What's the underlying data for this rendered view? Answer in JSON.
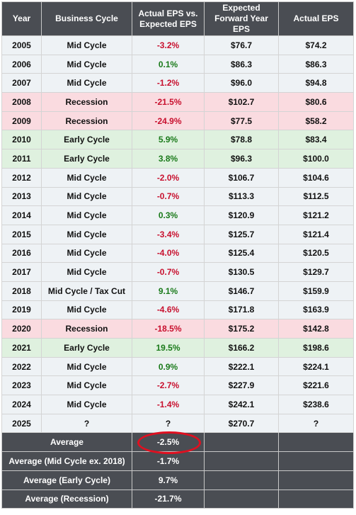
{
  "header": {
    "year": "Year",
    "cycle": "Business Cycle",
    "diff": "Actual EPS vs. Expected EPS",
    "expected": "Expected Forward Year EPS",
    "actual": "Actual EPS"
  },
  "rows": [
    {
      "year": "2005",
      "cycle": "Mid Cycle",
      "diff": "-3.2%",
      "expected": "$76.7",
      "actual": "$74.2"
    },
    {
      "year": "2006",
      "cycle": "Mid Cycle",
      "diff": "0.1%",
      "expected": "$86.3",
      "actual": "$86.3"
    },
    {
      "year": "2007",
      "cycle": "Mid Cycle",
      "diff": "-1.2%",
      "expected": "$96.0",
      "actual": "$94.8"
    },
    {
      "year": "2008",
      "cycle": "Recession",
      "diff": "-21.5%",
      "expected": "$102.7",
      "actual": "$80.6"
    },
    {
      "year": "2009",
      "cycle": "Recession",
      "diff": "-24.9%",
      "expected": "$77.5",
      "actual": "$58.2"
    },
    {
      "year": "2010",
      "cycle": "Early Cycle",
      "diff": "5.9%",
      "expected": "$78.8",
      "actual": "$83.4"
    },
    {
      "year": "2011",
      "cycle": "Early Cycle",
      "diff": "3.8%",
      "expected": "$96.3",
      "actual": "$100.0"
    },
    {
      "year": "2012",
      "cycle": "Mid Cycle",
      "diff": "-2.0%",
      "expected": "$106.7",
      "actual": "$104.6"
    },
    {
      "year": "2013",
      "cycle": "Mid Cycle",
      "diff": "-0.7%",
      "expected": "$113.3",
      "actual": "$112.5"
    },
    {
      "year": "2014",
      "cycle": "Mid Cycle",
      "diff": "0.3%",
      "expected": "$120.9",
      "actual": "$121.2"
    },
    {
      "year": "2015",
      "cycle": "Mid Cycle",
      "diff": "-3.4%",
      "expected": "$125.7",
      "actual": "$121.4"
    },
    {
      "year": "2016",
      "cycle": "Mid Cycle",
      "diff": "-4.0%",
      "expected": "$125.4",
      "actual": "$120.5"
    },
    {
      "year": "2017",
      "cycle": "Mid Cycle",
      "diff": "-0.7%",
      "expected": "$130.5",
      "actual": "$129.7"
    },
    {
      "year": "2018",
      "cycle": "Mid Cycle / Tax Cut",
      "diff": "9.1%",
      "expected": "$146.7",
      "actual": "$159.9"
    },
    {
      "year": "2019",
      "cycle": "Mid Cycle",
      "diff": "-4.6%",
      "expected": "$171.8",
      "actual": "$163.9"
    },
    {
      "year": "2020",
      "cycle": "Recession",
      "diff": "-18.5%",
      "expected": "$175.2",
      "actual": "$142.8"
    },
    {
      "year": "2021",
      "cycle": "Early Cycle",
      "diff": "19.5%",
      "expected": "$166.2",
      "actual": "$198.6"
    },
    {
      "year": "2022",
      "cycle": "Mid Cycle",
      "diff": "0.9%",
      "expected": "$222.1",
      "actual": "$224.1"
    },
    {
      "year": "2023",
      "cycle": "Mid Cycle",
      "diff": "-2.7%",
      "expected": "$227.9",
      "actual": "$221.6"
    },
    {
      "year": "2024",
      "cycle": "Mid Cycle",
      "diff": "-1.4%",
      "expected": "$242.1",
      "actual": "$238.6"
    },
    {
      "year": "2025",
      "cycle": "?",
      "diff": "?",
      "expected": "$270.7",
      "actual": "?"
    }
  ],
  "averages": [
    {
      "label": "Average",
      "value": "-2.5%"
    },
    {
      "label": "Average (Mid Cycle ex. 2018)",
      "value": "-1.7%"
    },
    {
      "label": "Average (Early Cycle)",
      "value": "9.7%"
    },
    {
      "label": "Average (Recession)",
      "value": "-21.7%"
    }
  ],
  "colors": {
    "header_bg": "#4a4d53",
    "mid_cycle_bg": "#eef2f5",
    "recession_bg": "#fadbe0",
    "early_cycle_bg": "#dff1df",
    "negative_text": "#c8102e",
    "positive_text": "#1a7a1a",
    "highlight_ring": "#e01020"
  }
}
